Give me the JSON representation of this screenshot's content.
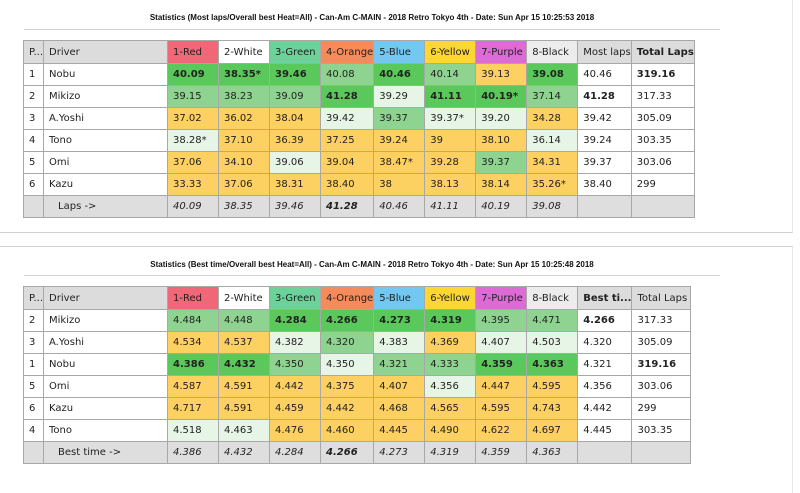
{
  "table1": {
    "title": "Statistics (Most laps/Overall best Heat=All) - Can-Am C-MAIN - 2018 Retro Tokyo 4th - Date: Sun Apr 15 10:25:53 2018",
    "headers": [
      "P...",
      "Driver",
      "1-Red",
      "2-White",
      "3-Green",
      "4-Orange",
      "5-Blue",
      "6-Yellow",
      "7-Purple",
      "8-Black",
      "Most laps",
      "Total Laps"
    ],
    "header_colors": [
      "#dcdcdc",
      "#dcdcdc",
      "#f06878",
      "#ffffff",
      "#6cd29a",
      "#f58a5a",
      "#72c8f0",
      "#fcd633",
      "#de6ad6",
      "#ececec",
      "#dcdcdc",
      "#dcdcdc"
    ],
    "rows": [
      {
        "pos": "1",
        "driver": "Nobu",
        "cells": [
          "40.09",
          "38.35*",
          "39.46",
          "40.08",
          "40.46",
          "40.14",
          "39.13",
          "39.08"
        ],
        "best": "40.46",
        "total": "319.16"
      },
      {
        "pos": "2",
        "driver": "Mikizo",
        "cells": [
          "39.15",
          "38.23",
          "39.09",
          "41.28",
          "39.29",
          "41.11",
          "40.19*",
          "37.14"
        ],
        "best": "41.28",
        "total": "317.33"
      },
      {
        "pos": "3",
        "driver": "A.Yoshi",
        "cells": [
          "37.02",
          "36.02",
          "38.04",
          "39.42",
          "39.37",
          "39.37*",
          "39.20",
          "34.28"
        ],
        "best": "39.42",
        "total": "305.09"
      },
      {
        "pos": "4",
        "driver": "Tono",
        "cells": [
          "38.28*",
          "37.10",
          "36.39",
          "37.25",
          "39.24",
          "39",
          "38.10",
          "36.14"
        ],
        "best": "39.24",
        "total": "303.35"
      },
      {
        "pos": "5",
        "driver": "Omi",
        "cells": [
          "37.06",
          "34.10",
          "39.06",
          "39.04",
          "38.47*",
          "39.28",
          "39.37",
          "34.31"
        ],
        "best": "39.37",
        "total": "303.06"
      },
      {
        "pos": "6",
        "driver": "Kazu",
        "cells": [
          "33.33",
          "37.06",
          "38.31",
          "38.40",
          "38",
          "38.13",
          "38.14",
          "35.26*"
        ],
        "best": "38.40",
        "total": "299"
      }
    ],
    "footer_label": "Laps ->",
    "footer": [
      "40.09",
      "38.35",
      "39.46",
      "41.28",
      "40.46",
      "41.11",
      "40.19",
      "39.08"
    ]
  },
  "table2": {
    "title": "Statistics (Best time/Overall best Heat=All) - Can-Am C-MAIN - 2018 Retro Tokyo 4th - Date: Sun Apr 15 10:25:48 2018",
    "headers": [
      "P...",
      "Driver",
      "1-Red",
      "2-White",
      "3-Green",
      "4-Orange",
      "5-Blue",
      "6-Yellow",
      "7-Purple",
      "8-Black",
      "Best ti...",
      "Total Laps"
    ],
    "header_colors": [
      "#dcdcdc",
      "#dcdcdc",
      "#f06878",
      "#ffffff",
      "#6cd29a",
      "#f58a5a",
      "#72c8f0",
      "#fcd633",
      "#de6ad6",
      "#ececec",
      "#dcdcdc",
      "#dcdcdc"
    ],
    "rows": [
      {
        "pos": "2",
        "driver": "Mikizo",
        "cells": [
          "4.484",
          "4.448",
          "4.284",
          "4.266",
          "4.273",
          "4.319",
          "4.395",
          "4.471"
        ],
        "best": "4.266",
        "total": "317.33"
      },
      {
        "pos": "3",
        "driver": "A.Yoshi",
        "cells": [
          "4.534",
          "4.537",
          "4.382",
          "4.320",
          "4.383",
          "4.369",
          "4.407",
          "4.503"
        ],
        "best": "4.320",
        "total": "305.09"
      },
      {
        "pos": "1",
        "driver": "Nobu",
        "cells": [
          "4.386",
          "4.432",
          "4.350",
          "4.350",
          "4.321",
          "4.333",
          "4.359",
          "4.363"
        ],
        "best": "4.321",
        "total": "319.16"
      },
      {
        "pos": "5",
        "driver": "Omi",
        "cells": [
          "4.587",
          "4.591",
          "4.442",
          "4.375",
          "4.407",
          "4.356",
          "4.447",
          "4.595"
        ],
        "best": "4.356",
        "total": "303.06"
      },
      {
        "pos": "6",
        "driver": "Kazu",
        "cells": [
          "4.717",
          "4.591",
          "4.459",
          "4.442",
          "4.468",
          "4.565",
          "4.595",
          "4.743"
        ],
        "best": "4.442",
        "total": "299"
      },
      {
        "pos": "4",
        "driver": "Tono",
        "cells": [
          "4.518",
          "4.463",
          "4.476",
          "4.460",
          "4.445",
          "4.490",
          "4.622",
          "4.697"
        ],
        "best": "4.445",
        "total": "303.35"
      }
    ],
    "footer_label": "Best time ->",
    "footer": [
      "4.386",
      "4.432",
      "4.284",
      "4.266",
      "4.273",
      "4.319",
      "4.359",
      "4.363"
    ]
  }
}
